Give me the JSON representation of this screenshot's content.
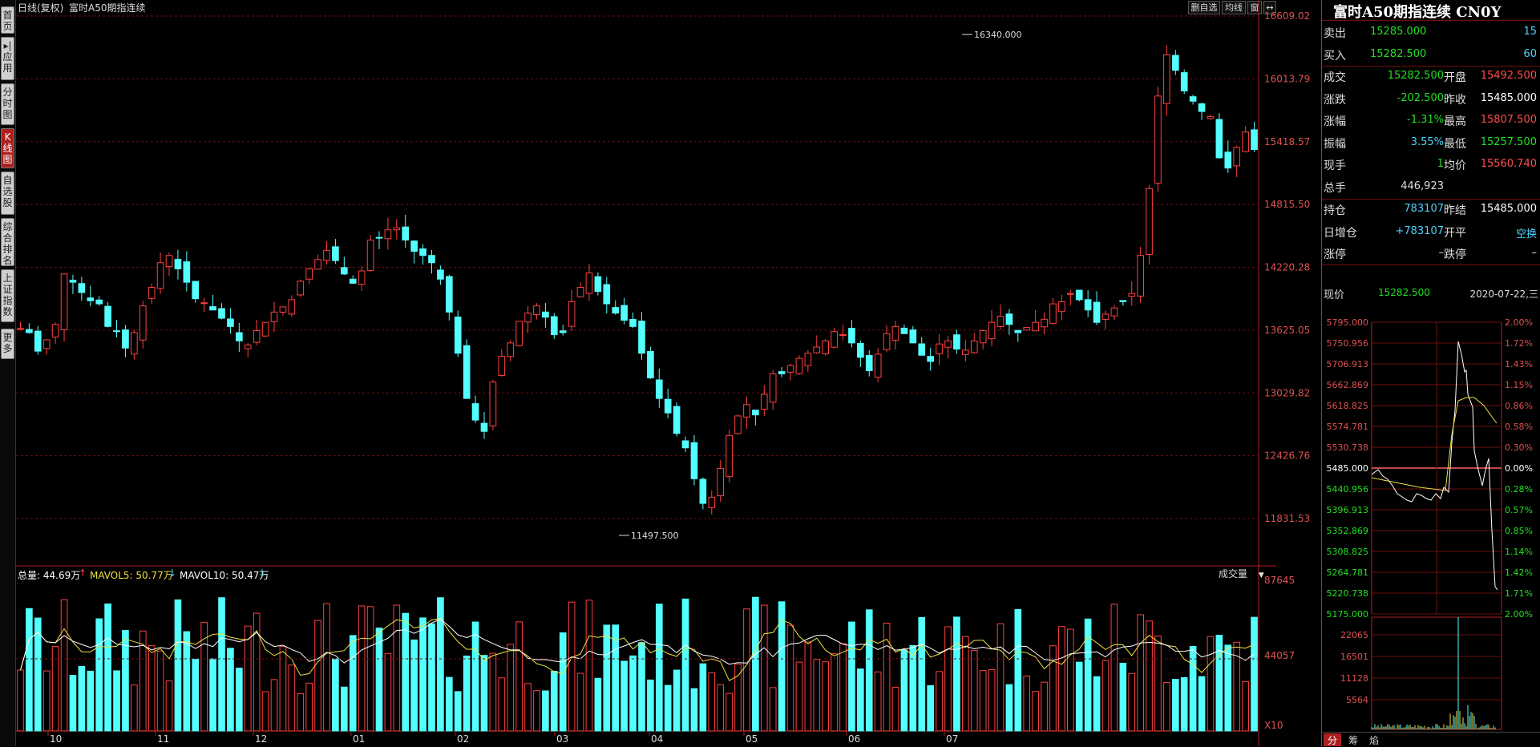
{
  "sidebar": [
    {
      "label": "首页",
      "state": "normal"
    },
    {
      "label": "▸|应用",
      "state": "normal"
    },
    {
      "label": "分时图",
      "state": "normal"
    },
    {
      "label": "K线图",
      "state": "active"
    },
    {
      "label": "自选股",
      "state": "normal"
    },
    {
      "label": "综合排名",
      "state": "normal"
    },
    {
      "label": "上证指数",
      "state": "normal"
    },
    {
      "label": "更多",
      "state": "normal"
    }
  ],
  "header": {
    "mode": "日线(复权)",
    "name": "富时A50期指连续",
    "buttons": [
      "删自选",
      "均线",
      "窗",
      "↔"
    ]
  },
  "kline": {
    "price_axis": [
      "16609.02",
      "16013.79",
      "15418.57",
      "14815.50",
      "14220.28",
      "13625.05",
      "13029.82",
      "12426.76",
      "11831.53"
    ],
    "high_label": "16340.000",
    "low_label": "11497.500",
    "months": [
      "10",
      "11",
      "12",
      "01",
      "02",
      "03",
      "04",
      "05",
      "06",
      "07"
    ],
    "volume_legend": {
      "total": "总量: 44.69万",
      "ma5": "MAVOL5: 50.77万",
      "ma10": "MAVOL10: 50.47万"
    },
    "volume_axis": [
      "87645",
      "44057",
      "X10"
    ],
    "volume_dropdown": "成交量"
  },
  "quote": {
    "title": "富时A50期指连续 CN0Y",
    "sell": {
      "label": "卖出",
      "price": "15285.000",
      "qty": "15"
    },
    "buy": {
      "label": "买入",
      "price": "15282.500",
      "qty": "60"
    },
    "rows": [
      {
        "l1": "成交",
        "v1": "15282.500",
        "l2": "开盘",
        "v2": "15492.500"
      },
      {
        "l1": "涨跌",
        "v1": "-202.500",
        "l2": "昨收",
        "v2": "15485.000"
      },
      {
        "l1": "涨幅",
        "v1": "-1.31%",
        "l2": "最高",
        "v2": "15807.500"
      },
      {
        "l1": "振幅",
        "v1": "3.55%",
        "l2": "最低",
        "v2": "15257.500"
      },
      {
        "l1": "现手",
        "v1": "1",
        "l2": "均价",
        "v2": "15560.740"
      },
      {
        "l1": "总手",
        "v1": "446,923",
        "l2": "",
        "v2": ""
      }
    ],
    "rows2": [
      {
        "l1": "持仓",
        "v1": "783107",
        "l2": "昨结",
        "v2": "15485.000"
      },
      {
        "l1": "日增仓",
        "v1": "+783107",
        "l2": "开平",
        "v2": "空换"
      },
      {
        "l1": "涨停",
        "v1": "–",
        "l2": "跌停",
        "v2": "–"
      }
    ],
    "now_label": "现价",
    "now_price": "15282.500",
    "date": "2020-07-22,三"
  },
  "intraday": {
    "price_axis": [
      "5795.000",
      "5750.956",
      "5706.913",
      "5662.869",
      "5618.825",
      "5574.781",
      "5530.738",
      "5485.000",
      "5440.956",
      "5396.913",
      "5352.869",
      "5308.825",
      "5264.781",
      "5220.738",
      "5175.000"
    ],
    "pct_axis": [
      "2.00%",
      "1.72%",
      "1.43%",
      "1.15%",
      "0.86%",
      "0.58%",
      "0.30%",
      "0.00%",
      "0.28%",
      "0.57%",
      "0.85%",
      "1.14%",
      "1.42%",
      "1.71%",
      "2.00%"
    ],
    "vol_axis": [
      "22065",
      "16501",
      "11128",
      "5564"
    ],
    "tabs": [
      "分",
      "筹",
      "焰"
    ]
  }
}
